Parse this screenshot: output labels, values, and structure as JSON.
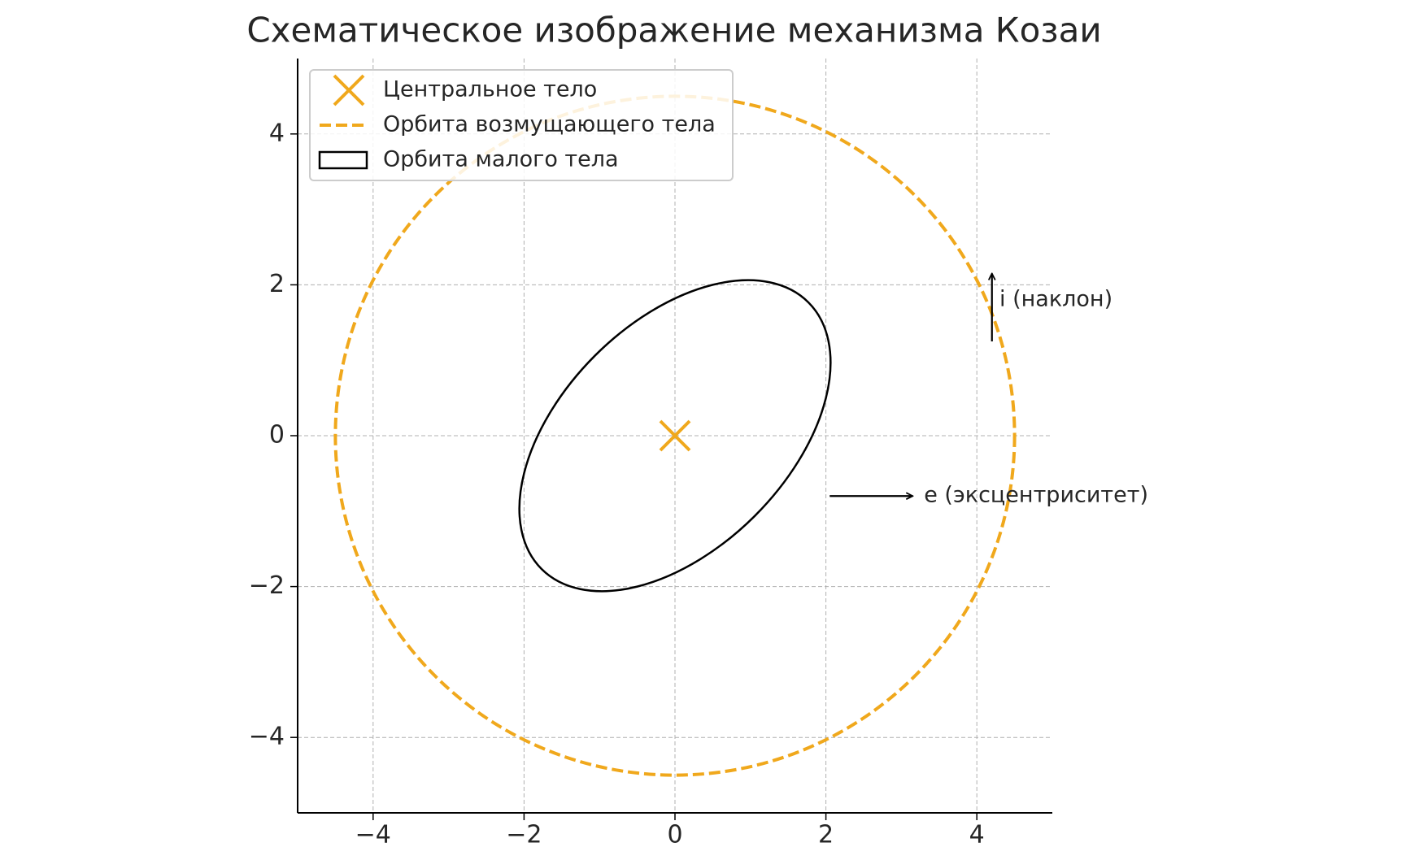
{
  "chart_data": {
    "type": "orbit-diagram",
    "title": "Схематическое изображение механизма Козаи",
    "xlim": [
      -5,
      5
    ],
    "ylim": [
      -5,
      5
    ],
    "xticks": [
      {
        "value": -4,
        "label": "−4"
      },
      {
        "value": -2,
        "label": "−2"
      },
      0,
      2,
      4
    ],
    "yticks": [
      {
        "value": -4,
        "label": "−4"
      },
      {
        "value": -2,
        "label": "−2"
      },
      0,
      2,
      4
    ],
    "grid": true,
    "legend": "upper left",
    "series": [
      {
        "name": "Центральное тело",
        "kind": "marker",
        "color": "#f0a81c",
        "x": 0,
        "y": 0
      },
      {
        "name": "Орбита возмущающего тела",
        "kind": "circle",
        "color": "#f0a81c",
        "x": 0,
        "y": 0,
        "radius": 4.5
      },
      {
        "name": "Орбита малого тела",
        "kind": "ellipse",
        "color": "#000000",
        "x": 0,
        "y": 0,
        "width": 5,
        "height": 3,
        "angle": 45
      }
    ],
    "annotations": [
      {
        "text": "e (эксцентриситет)",
        "x": 3.3,
        "y": -0.8,
        "arrow_from": [
          2.05,
          -0.8
        ],
        "arrow_to": [
          3.15,
          -0.8
        ]
      },
      {
        "text": "i (наклон)",
        "x": 4.3,
        "y": 1.8,
        "arrow_from": [
          4.2,
          1.25
        ],
        "arrow_to": [
          4.2,
          2.15
        ]
      }
    ]
  }
}
